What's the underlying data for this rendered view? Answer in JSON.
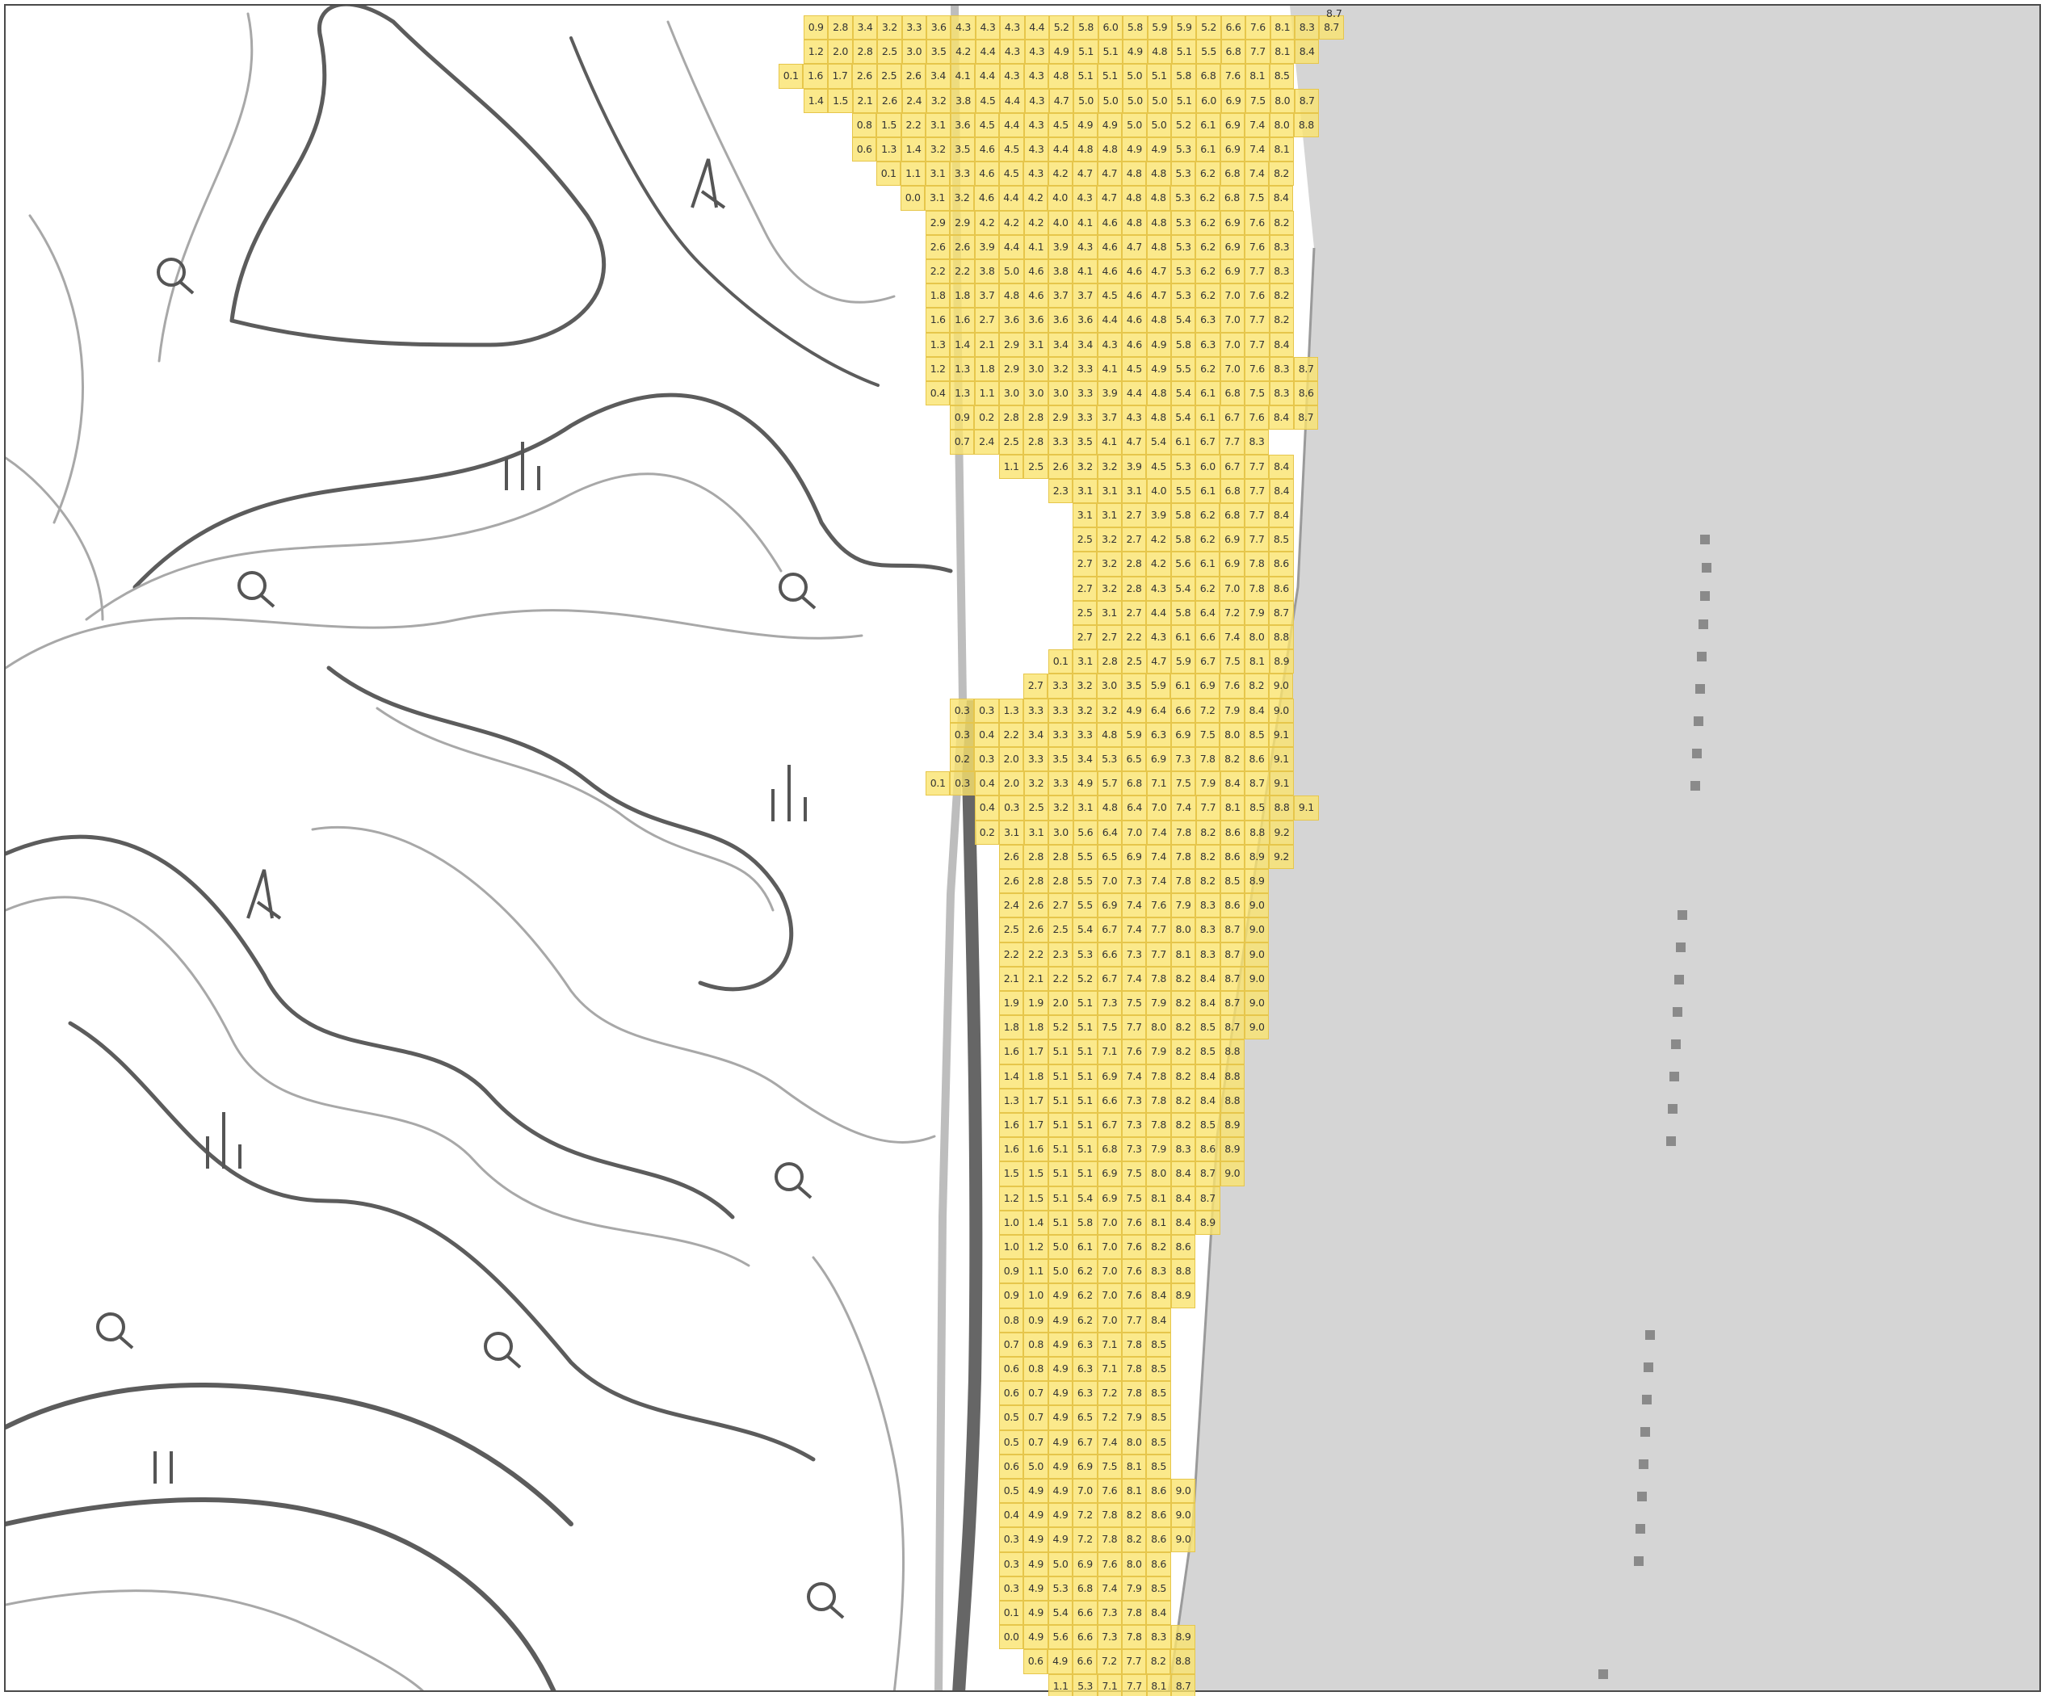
{
  "map": {
    "palette": {
      "land": "#ffffff",
      "sea": "#d5d5d5",
      "contour": "#5c5c5c",
      "contour_light": "#a8a8a8",
      "road": "#6a6a6a",
      "cell_fill": "#fae46e",
      "cell_border": "#e6c64b"
    },
    "symbols": [
      "shrine-or-map-pin-icon",
      "broadleaf-tree-icon",
      "wasteland-icon",
      "coniferous-tree-icon"
    ],
    "stray_label": "8.7",
    "grid_rows": [
      [
        0.9,
        2.8,
        3.4,
        3.2,
        3.3,
        3.6,
        4.3,
        4.3,
        4.3,
        4.4,
        5.2,
        5.8,
        6.0,
        5.8,
        5.9,
        5.9,
        5.2,
        6.6,
        7.6,
        8.1,
        8.3,
        8.7
      ],
      [
        1.2,
        2.0,
        2.8,
        2.5,
        3.0,
        3.5,
        4.2,
        4.4,
        4.3,
        4.3,
        4.9,
        5.1,
        5.1,
        4.9,
        4.8,
        5.1,
        5.5,
        6.8,
        7.7,
        8.1,
        8.4
      ],
      [
        0.1,
        1.6,
        1.7,
        2.6,
        2.5,
        2.6,
        3.4,
        4.1,
        4.4,
        4.3,
        4.3,
        4.8,
        5.1,
        5.1,
        5.0,
        5.1,
        5.8,
        6.8,
        7.6,
        8.1,
        8.5
      ],
      [
        1.4,
        1.5,
        2.1,
        2.6,
        2.4,
        3.2,
        3.8,
        4.5,
        4.4,
        4.3,
        4.7,
        5.0,
        5.0,
        5.0,
        5.0,
        5.1,
        6.0,
        6.9,
        7.5,
        8.0,
        8.7
      ],
      [
        0.8,
        1.5,
        2.2,
        3.1,
        3.6,
        4.5,
        4.4,
        4.3,
        4.5,
        4.9,
        4.9,
        5.0,
        5.0,
        5.2,
        6.1,
        6.9,
        7.4,
        8.0,
        8.8
      ],
      [
        0.6,
        1.3,
        1.4,
        3.2,
        3.5,
        4.6,
        4.5,
        4.3,
        4.4,
        4.8,
        4.8,
        4.9,
        4.9,
        5.3,
        6.1,
        6.9,
        7.4,
        8.1
      ],
      [
        0.1,
        1.1,
        3.1,
        3.3,
        4.6,
        4.5,
        4.3,
        4.2,
        4.7,
        4.7,
        4.8,
        4.8,
        5.3,
        6.2,
        6.8,
        7.4,
        8.2
      ],
      [
        0.0,
        3.1,
        3.2,
        4.6,
        4.4,
        4.2,
        4.0,
        4.3,
        4.7,
        4.8,
        4.8,
        5.3,
        6.2,
        6.8,
        7.5,
        8.4
      ],
      [
        2.9,
        2.9,
        4.2,
        4.2,
        4.2,
        4.0,
        4.1,
        4.6,
        4.8,
        4.8,
        5.3,
        6.2,
        6.9,
        7.6,
        8.2
      ],
      [
        2.6,
        2.6,
        3.9,
        4.4,
        4.1,
        3.9,
        4.3,
        4.6,
        4.7,
        4.8,
        5.3,
        6.2,
        6.9,
        7.6,
        8.3
      ],
      [
        2.2,
        2.2,
        3.8,
        5.0,
        4.6,
        3.8,
        4.1,
        4.6,
        4.6,
        4.7,
        5.3,
        6.2,
        6.9,
        7.7,
        8.3
      ],
      [
        1.8,
        1.8,
        3.7,
        4.8,
        4.6,
        3.7,
        3.7,
        4.5,
        4.6,
        4.7,
        5.3,
        6.2,
        7.0,
        7.6,
        8.2
      ],
      [
        1.6,
        1.6,
        2.7,
        3.6,
        3.6,
        3.6,
        3.6,
        4.4,
        4.6,
        4.8,
        5.4,
        6.3,
        7.0,
        7.7,
        8.2
      ],
      [
        1.3,
        1.4,
        2.1,
        2.9,
        3.1,
        3.4,
        3.4,
        4.3,
        4.6,
        4.9,
        5.8,
        6.3,
        7.0,
        7.7,
        8.4
      ],
      [
        1.2,
        1.3,
        1.8,
        2.9,
        3.0,
        3.2,
        3.3,
        4.1,
        4.5,
        4.9,
        5.5,
        6.2,
        7.0,
        7.6,
        8.3,
        8.7
      ],
      [
        0.4,
        1.3,
        1.1,
        3.0,
        3.0,
        3.0,
        3.3,
        3.9,
        4.4,
        4.8,
        5.4,
        6.1,
        6.8,
        7.5,
        8.3,
        8.6
      ],
      [
        0.9,
        0.2,
        2.8,
        2.8,
        2.9,
        3.3,
        3.7,
        4.3,
        4.8,
        5.4,
        6.1,
        6.7,
        7.6,
        8.4,
        8.7
      ],
      [
        0.7,
        2.4,
        2.5,
        2.8,
        3.3,
        3.5,
        4.1,
        4.7,
        5.4,
        6.1,
        6.7,
        7.7,
        8.3
      ],
      [
        1.1,
        2.5,
        2.6,
        3.2,
        3.2,
        3.9,
        4.5,
        5.3,
        6.0,
        6.7,
        7.7,
        8.4
      ],
      [
        2.3,
        3.1,
        3.1,
        3.1,
        4.0,
        5.5,
        6.1,
        6.8,
        7.7,
        8.4
      ],
      [
        3.1,
        3.1,
        2.7,
        3.9,
        5.8,
        6.2,
        6.8,
        7.7,
        8.4
      ],
      [
        2.5,
        3.2,
        2.7,
        4.2,
        5.8,
        6.2,
        6.9,
        7.7,
        8.5
      ],
      [
        2.7,
        3.2,
        2.8,
        4.2,
        5.6,
        6.1,
        6.9,
        7.8,
        8.6
      ],
      [
        2.7,
        3.2,
        2.8,
        4.3,
        5.4,
        6.2,
        7.0,
        7.8,
        8.6
      ],
      [
        2.5,
        3.1,
        2.7,
        4.4,
        5.8,
        6.4,
        7.2,
        7.9,
        8.7
      ],
      [
        2.7,
        2.7,
        2.2,
        4.3,
        6.1,
        6.6,
        7.4,
        8.0,
        8.8
      ],
      [
        0.1,
        3.1,
        2.8,
        2.5,
        4.7,
        5.9,
        6.7,
        7.5,
        8.1,
        8.9
      ],
      [
        2.7,
        3.3,
        3.2,
        3.0,
        3.5,
        5.9,
        6.1,
        6.9,
        7.6,
        8.2,
        9.0
      ],
      [
        0.3,
        0.3,
        1.3,
        3.3,
        3.3,
        3.2,
        3.2,
        4.9,
        6.4,
        6.6,
        7.2,
        7.9,
        8.4,
        9.0
      ],
      [
        0.3,
        0.4,
        2.2,
        3.4,
        3.3,
        3.3,
        4.8,
        5.9,
        6.3,
        6.9,
        7.5,
        8.0,
        8.5,
        9.1
      ],
      [
        0.2,
        0.3,
        2.0,
        3.3,
        3.5,
        3.4,
        5.3,
        6.5,
        6.9,
        7.3,
        7.8,
        8.2,
        8.6,
        9.1
      ],
      [
        0.1,
        0.3,
        0.4,
        2.0,
        3.2,
        3.3,
        4.9,
        5.7,
        6.8,
        7.1,
        7.5,
        7.9,
        8.4,
        8.7,
        9.1
      ],
      [
        0.4,
        0.3,
        2.5,
        3.2,
        3.1,
        4.8,
        6.4,
        7.0,
        7.4,
        7.7,
        8.1,
        8.5,
        8.8,
        9.1
      ],
      [
        0.2,
        3.1,
        3.1,
        3.0,
        5.6,
        6.4,
        7.0,
        7.4,
        7.8,
        8.2,
        8.6,
        8.8,
        9.2
      ],
      [
        2.6,
        2.8,
        2.8,
        5.5,
        6.5,
        6.9,
        7.4,
        7.8,
        8.2,
        8.6,
        8.9,
        9.2
      ],
      [
        2.6,
        2.8,
        2.8,
        5.5,
        7.0,
        7.3,
        7.4,
        7.8,
        8.2,
        8.5,
        8.9
      ],
      [
        2.4,
        2.6,
        2.7,
        5.5,
        6.9,
        7.4,
        7.6,
        7.9,
        8.3,
        8.6,
        9.0
      ],
      [
        2.5,
        2.6,
        2.5,
        5.4,
        6.7,
        7.4,
        7.7,
        8.0,
        8.3,
        8.7,
        9.0
      ],
      [
        2.2,
        2.2,
        2.3,
        5.3,
        6.6,
        7.3,
        7.7,
        8.1,
        8.3,
        8.7,
        9.0
      ],
      [
        2.1,
        2.1,
        2.2,
        5.2,
        6.7,
        7.4,
        7.8,
        8.2,
        8.4,
        8.7,
        9.0
      ],
      [
        1.9,
        1.9,
        2.0,
        5.1,
        7.3,
        7.5,
        7.9,
        8.2,
        8.4,
        8.7,
        9.0
      ],
      [
        1.8,
        1.8,
        5.2,
        5.1,
        7.5,
        7.7,
        8.0,
        8.2,
        8.5,
        8.7,
        9.0
      ],
      [
        1.6,
        1.7,
        5.1,
        5.1,
        7.1,
        7.6,
        7.9,
        8.2,
        8.5,
        8.8
      ],
      [
        1.4,
        1.8,
        5.1,
        5.1,
        6.9,
        7.4,
        7.8,
        8.2,
        8.4,
        8.8
      ],
      [
        1.3,
        1.7,
        5.1,
        5.1,
        6.6,
        7.3,
        7.8,
        8.2,
        8.4,
        8.8
      ],
      [
        1.6,
        1.7,
        5.1,
        5.1,
        6.7,
        7.3,
        7.8,
        8.2,
        8.5,
        8.9
      ],
      [
        1.6,
        1.6,
        5.1,
        5.1,
        6.8,
        7.3,
        7.9,
        8.3,
        8.6,
        8.9
      ],
      [
        1.5,
        1.5,
        5.1,
        5.1,
        6.9,
        7.5,
        8.0,
        8.4,
        8.7,
        9.0
      ],
      [
        1.2,
        1.5,
        5.1,
        5.4,
        6.9,
        7.5,
        8.1,
        8.4,
        8.7
      ],
      [
        1.0,
        1.4,
        5.1,
        5.8,
        7.0,
        7.6,
        8.1,
        8.4,
        8.9
      ],
      [
        1.0,
        1.2,
        5.0,
        6.1,
        7.0,
        7.6,
        8.2,
        8.6
      ],
      [
        0.9,
        1.1,
        5.0,
        6.2,
        7.0,
        7.6,
        8.3,
        8.8
      ],
      [
        0.9,
        1.0,
        4.9,
        6.2,
        7.0,
        7.6,
        8.4,
        8.9
      ],
      [
        0.8,
        0.9,
        4.9,
        6.2,
        7.0,
        7.7,
        8.4
      ],
      [
        0.7,
        0.8,
        4.9,
        6.3,
        7.1,
        7.8,
        8.5
      ],
      [
        0.6,
        0.8,
        4.9,
        6.3,
        7.1,
        7.8,
        8.5
      ],
      [
        0.6,
        0.7,
        4.9,
        6.3,
        7.2,
        7.8,
        8.5
      ],
      [
        0.5,
        0.7,
        4.9,
        6.5,
        7.2,
        7.9,
        8.5
      ],
      [
        0.5,
        0.7,
        4.9,
        6.7,
        7.4,
        8.0,
        8.5
      ],
      [
        0.6,
        5.0,
        4.9,
        6.9,
        7.5,
        8.1,
        8.5
      ],
      [
        0.5,
        4.9,
        4.9,
        7.0,
        7.6,
        8.1,
        8.6,
        9.0
      ],
      [
        0.4,
        4.9,
        4.9,
        7.2,
        7.8,
        8.2,
        8.6,
        9.0
      ],
      [
        0.3,
        4.9,
        4.9,
        7.2,
        7.8,
        8.2,
        8.6,
        9.0
      ],
      [
        0.3,
        4.9,
        5.0,
        6.9,
        7.6,
        8.0,
        8.6
      ],
      [
        0.3,
        4.9,
        5.3,
        6.8,
        7.4,
        7.9,
        8.5
      ],
      [
        0.1,
        4.9,
        5.4,
        6.6,
        7.3,
        7.8,
        8.4
      ],
      [
        0.0,
        4.9,
        5.6,
        6.6,
        7.3,
        7.8,
        8.3,
        8.9
      ],
      [
        0.6,
        4.9,
        6.6,
        7.2,
        7.7,
        8.2,
        8.8
      ],
      [
        1.1,
        5.3,
        7.1,
        7.7,
        8.1,
        8.7
      ]
    ]
  }
}
